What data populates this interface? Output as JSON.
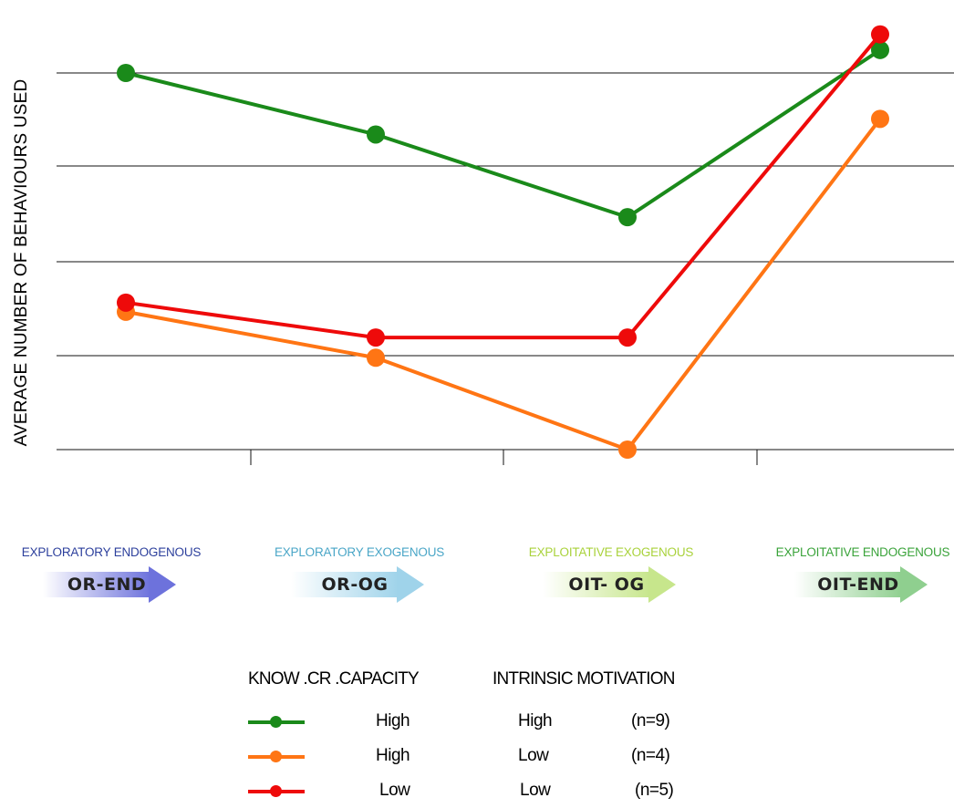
{
  "chart_data": {
    "type": "line",
    "title": "",
    "xlabel": "",
    "ylabel": "AVERAGE NUMBER OF BEHAVIOURS USED",
    "ylim": [
      0,
      4.1
    ],
    "grid": true,
    "categories": [
      {
        "title": "EXPLORATORY ENDOGENOUS",
        "code": "OR-END",
        "title_color": "#2c3f9c",
        "arrow_color": "#6d72dc"
      },
      {
        "title": "EXPLORATORY EXOGENOUS",
        "code": "OR-OG",
        "title_color": "#4aa6c7",
        "arrow_color": "#9fd3ea"
      },
      {
        "title": "EXPLOITATIVE EXOGENOUS",
        "code": "OIT- OG",
        "title_color": "#a9d23b",
        "arrow_color": "#c7e68c"
      },
      {
        "title": "EXPLOITATIVE ENDOGENOUS",
        "code": "OIT-END",
        "title_color": "#3aa33a",
        "arrow_color": "#8fcf8f"
      }
    ],
    "series": [
      {
        "color": "#1a8a1a",
        "values": [
          4.1,
          3.43,
          2.53,
          4.35
        ]
      },
      {
        "color": "#ff7514",
        "values": [
          1.5,
          1.0,
          0.0,
          3.6
        ]
      },
      {
        "color": "#ee0a0a",
        "values": [
          1.6,
          1.22,
          1.22,
          4.52
        ]
      }
    ]
  },
  "legend": {
    "header_capacity": "KNOW .CR .CAPACITY",
    "header_motivation": "INTRINSIC MOTIVATION",
    "rows": [
      {
        "color": "#1a8a1a",
        "capacity": "High",
        "motivation": "High",
        "n": "(n=9)"
      },
      {
        "color": "#ff7514",
        "capacity": "High",
        "motivation": "Low",
        "n": "(n=4)"
      },
      {
        "color": "#ee0a0a",
        "capacity": "Low",
        "motivation": "Low",
        "n": "(n=5)"
      }
    ]
  }
}
